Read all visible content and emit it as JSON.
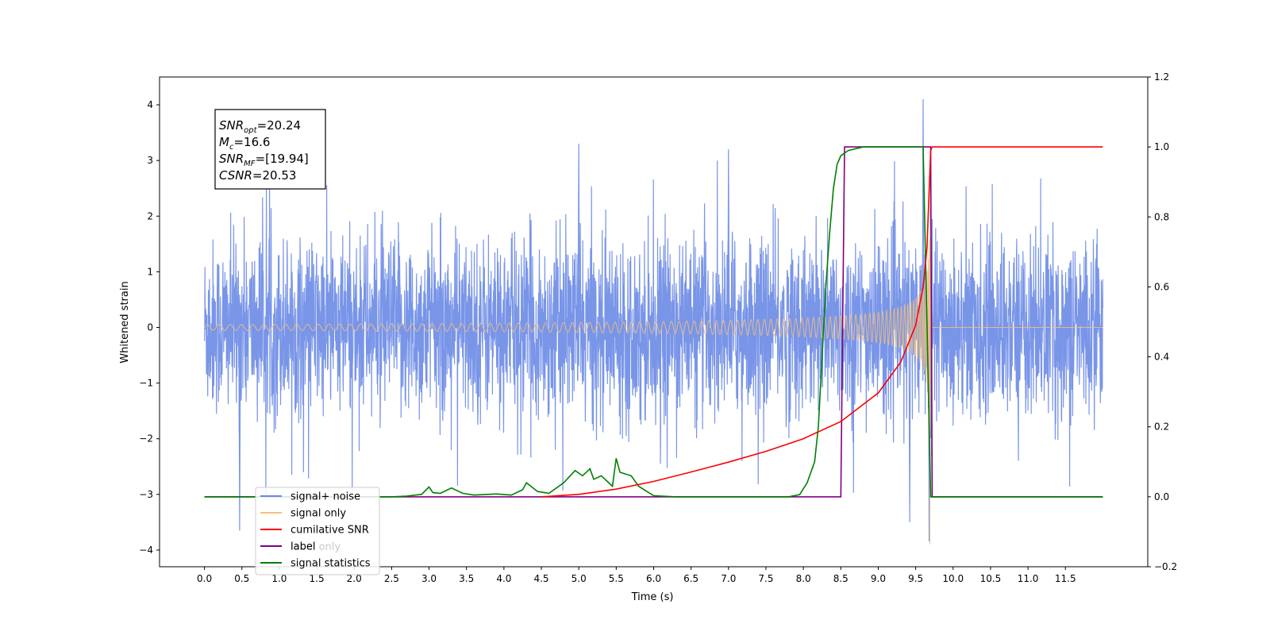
{
  "chart_data": {
    "type": "line",
    "xlabel": "Time (s)",
    "ylabel": "Whitened strain",
    "xlim": [
      -0.6,
      12.6
    ],
    "ylim": [
      -4.3,
      4.5
    ],
    "y2lim": [
      -0.2,
      1.2
    ],
    "x_ticks": [
      0.0,
      0.5,
      1.0,
      1.5,
      2.0,
      2.5,
      3.0,
      3.5,
      4.0,
      4.5,
      5.0,
      5.5,
      6.0,
      6.5,
      7.0,
      7.5,
      8.0,
      8.5,
      9.0,
      9.5,
      10.0,
      10.5,
      11.0,
      11.5
    ],
    "x_tick_labels": [
      "0.0",
      "0.5",
      "1.0",
      "1.5",
      "2.0",
      "2.5",
      "3.0",
      "3.5",
      "4.0",
      "4.5",
      "5.0",
      "5.5",
      "6.0",
      "6.5",
      "7.0",
      "7.5",
      "8.0",
      "8.5",
      "9.0",
      "9.5",
      "10.0",
      "10.5",
      "11.0",
      "11.5"
    ],
    "y_ticks": [
      -4,
      -3,
      -2,
      -1,
      0,
      1,
      2,
      3,
      4
    ],
    "y_tick_labels": [
      "−4",
      "−3",
      "−2",
      "−1",
      "0",
      "1",
      "2",
      "3",
      "4"
    ],
    "y2_ticks": [
      -0.2,
      0.0,
      0.2,
      0.4,
      0.6,
      0.8,
      1.0,
      1.2
    ],
    "y2_tick_labels": [
      "−0.2",
      "0.0",
      "0.2",
      "0.4",
      "0.6",
      "0.8",
      "1.0",
      "1.2"
    ],
    "annotation_lines": [
      {
        "base": "SNR",
        "sub": "opt",
        "rest": "=20.24"
      },
      {
        "base": "M",
        "sub": "c",
        "rest": "=16.6"
      },
      {
        "base": "SNR",
        "sub": "MF",
        "rest": "=[19.94]"
      },
      {
        "base": "CSNR",
        "sub": "",
        "rest": "=20.53"
      }
    ],
    "legend_position": "lower-left",
    "series": [
      {
        "name": "signal+ noise",
        "color": "#6a89e6",
        "axis": "left",
        "style": "noise band",
        "x_range": [
          0.0,
          12.0
        ],
        "typical_amplitude": 2.3,
        "extremes": [
          [
            9.6,
            4.1
          ],
          [
            9.68,
            -3.85
          ],
          [
            0.47,
            -3.65
          ],
          [
            5.0,
            3.3
          ],
          [
            7.0,
            3.2
          ],
          [
            9.42,
            -3.5
          ]
        ]
      },
      {
        "name": "signal only",
        "color": "#f5c07a",
        "axis": "left",
        "style": "chirp",
        "x_range": [
          0.0,
          12.0
        ],
        "merger_time": 9.7,
        "peak_amplitude": 3.3,
        "min_value": -3.9
      },
      {
        "name": "cumilative SNR",
        "color": "#ff0000",
        "axis": "right",
        "x": [
          4.5,
          5.0,
          5.5,
          6.0,
          6.5,
          7.0,
          7.5,
          8.0,
          8.5,
          9.0,
          9.3,
          9.5,
          9.6,
          9.65,
          9.7,
          9.72,
          12.0
        ],
        "y": [
          0.0,
          0.007,
          0.022,
          0.044,
          0.071,
          0.099,
          0.13,
          0.166,
          0.215,
          0.297,
          0.385,
          0.49,
          0.6,
          0.71,
          0.99,
          1.0,
          1.0
        ]
      },
      {
        "name": "label",
        "color": "#800080",
        "axis": "right",
        "x": [
          0.0,
          8.5,
          8.55,
          9.7,
          9.72,
          12.0
        ],
        "y": [
          0.0,
          0.0,
          1.0,
          1.0,
          0.0,
          0.0
        ]
      },
      {
        "name": "label only",
        "color": "#800080",
        "axis": "right",
        "x": [],
        "y": []
      },
      {
        "name": "signal statistics",
        "color": "#008000",
        "axis": "right",
        "x": [
          0.0,
          2.5,
          2.7,
          2.9,
          3.0,
          3.05,
          3.15,
          3.3,
          3.45,
          3.6,
          3.9,
          4.1,
          4.25,
          4.3,
          4.45,
          4.6,
          4.8,
          4.95,
          5.05,
          5.15,
          5.2,
          5.3,
          5.45,
          5.5,
          5.55,
          5.7,
          5.8,
          6.0,
          6.3,
          7.0,
          7.8,
          7.95,
          8.05,
          8.15,
          8.2,
          8.25,
          8.3,
          8.35,
          8.4,
          8.45,
          8.5,
          8.6,
          8.8,
          9.0,
          9.6,
          9.65,
          9.7,
          9.75,
          12.0
        ],
        "y": [
          0.0,
          0.0,
          0.002,
          0.007,
          0.028,
          0.012,
          0.01,
          0.025,
          0.01,
          0.005,
          0.008,
          0.005,
          0.02,
          0.04,
          0.015,
          0.01,
          0.04,
          0.075,
          0.06,
          0.08,
          0.05,
          0.06,
          0.03,
          0.11,
          0.07,
          0.06,
          0.03,
          0.003,
          0.0,
          0.0,
          0.0,
          0.006,
          0.04,
          0.1,
          0.2,
          0.4,
          0.6,
          0.75,
          0.88,
          0.95,
          0.975,
          0.99,
          1.0,
          1.0,
          1.0,
          0.5,
          0.0,
          0.0,
          0.0
        ]
      }
    ]
  }
}
